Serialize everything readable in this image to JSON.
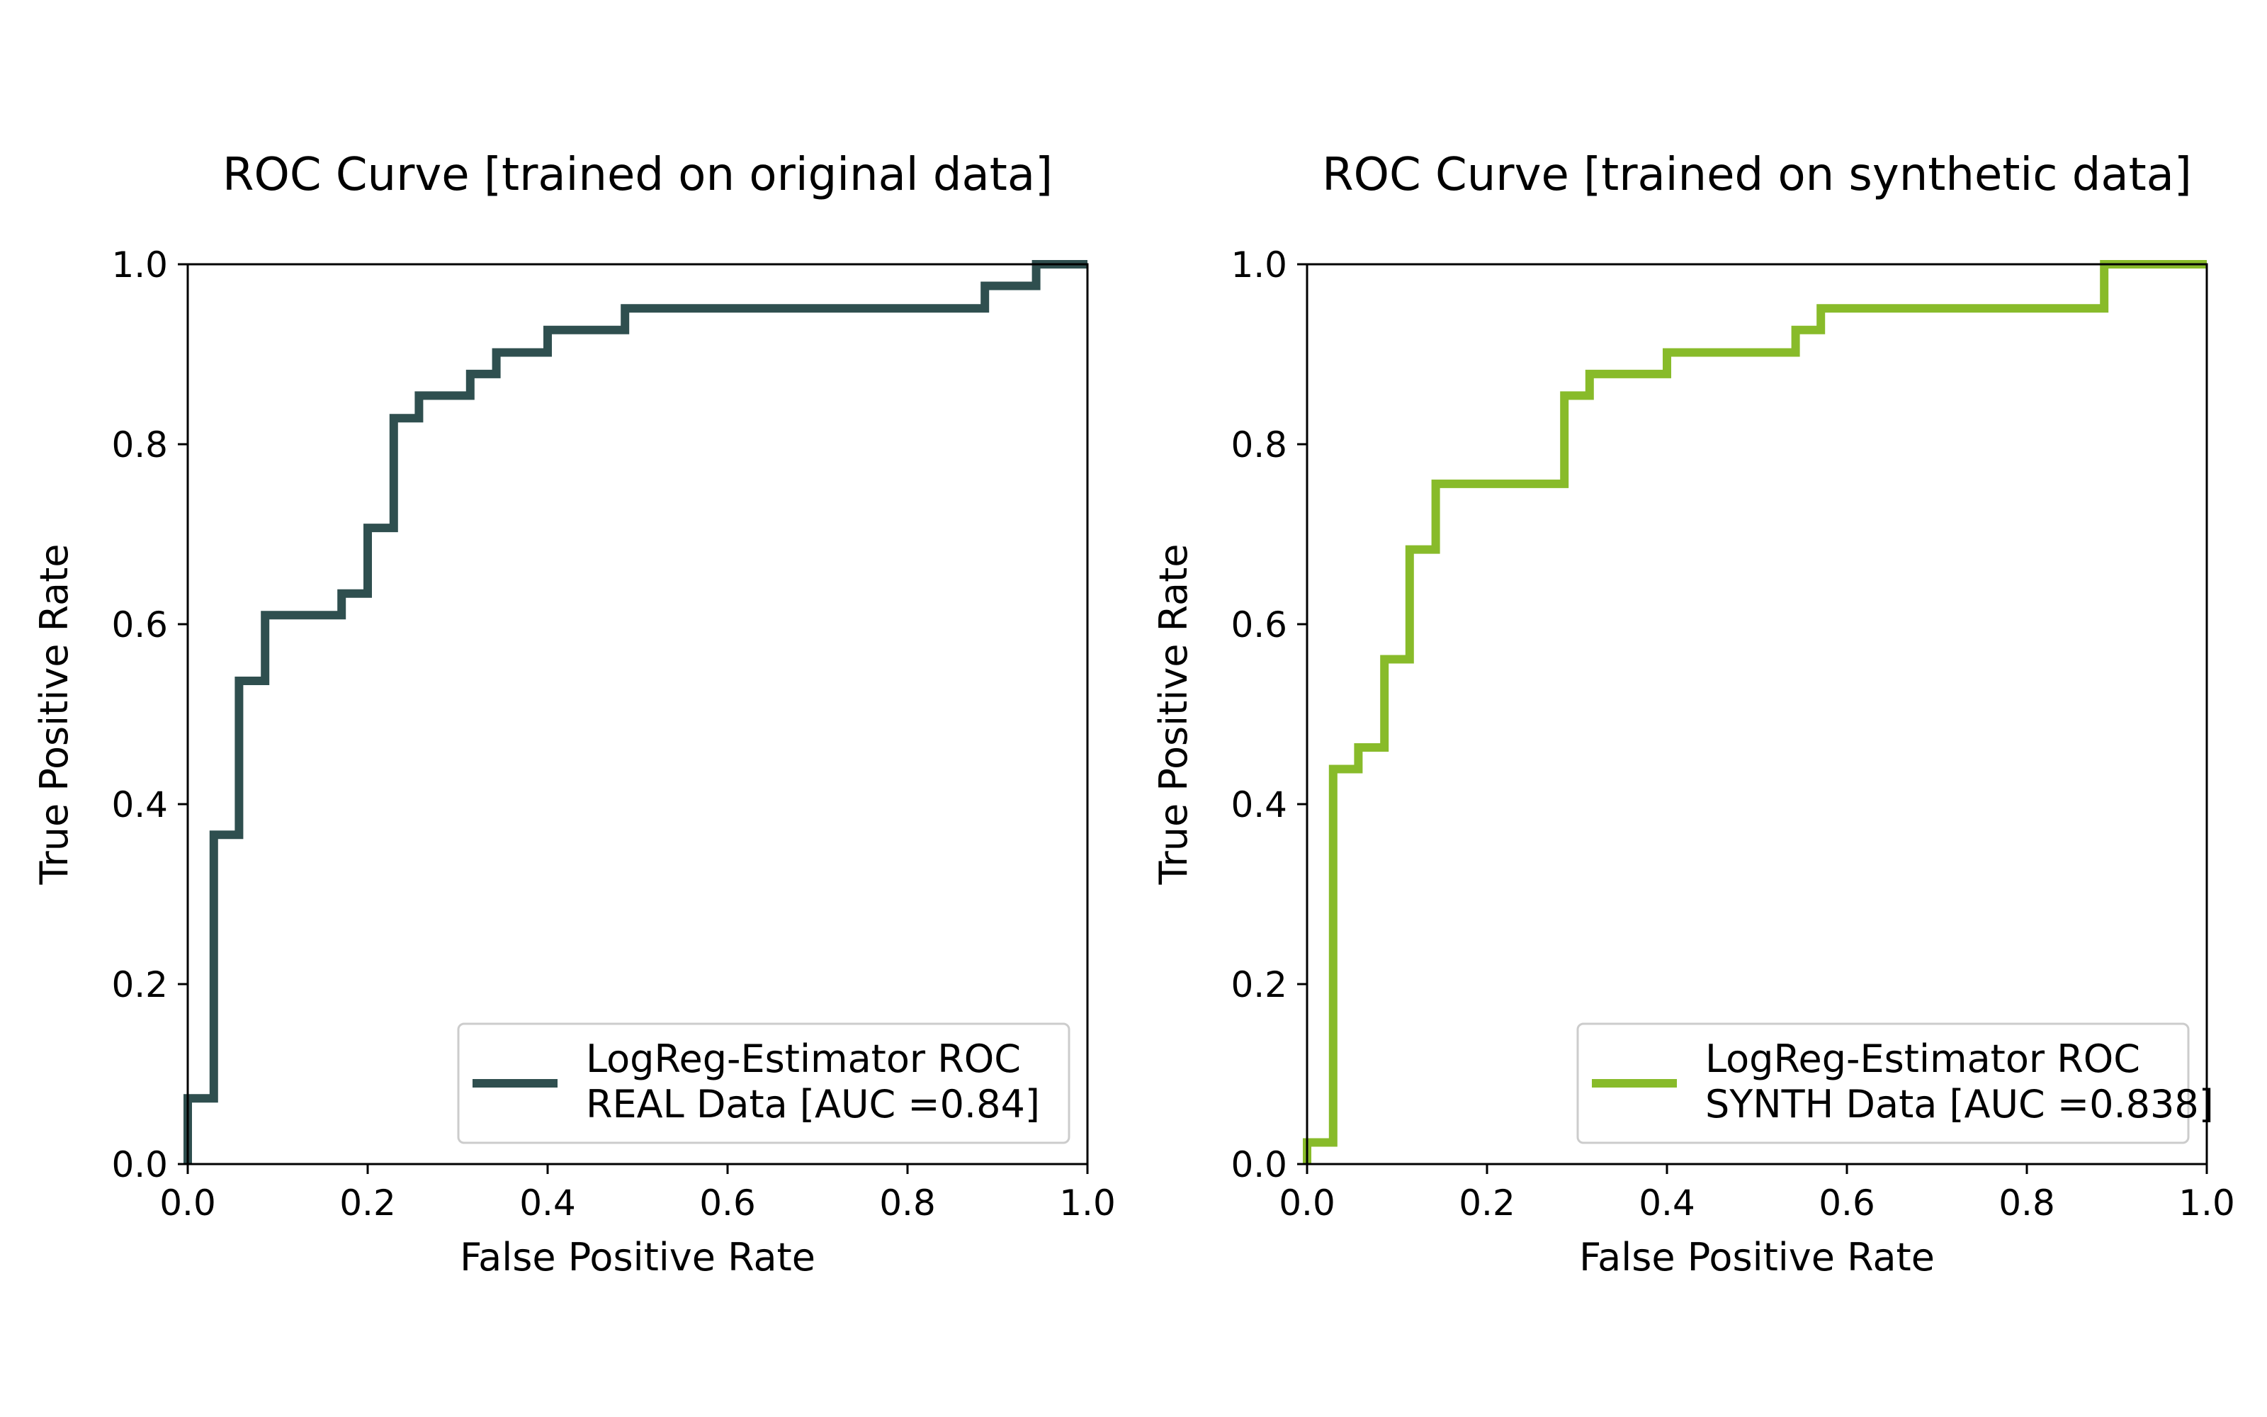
{
  "chart_data": [
    {
      "type": "line",
      "title": "ROC Curve [trained on original data]",
      "xlabel": "False Positive Rate",
      "ylabel": "True Positive Rate",
      "xlim": [
        0.0,
        1.0
      ],
      "ylim": [
        0.0,
        1.0
      ],
      "xticks": [
        "0.0",
        "0.2",
        "0.4",
        "0.6",
        "0.8",
        "1.0"
      ],
      "yticks": [
        "0.0",
        "0.2",
        "0.4",
        "0.6",
        "0.8",
        "1.0"
      ],
      "grid": false,
      "legend_position": "lower-right",
      "series": [
        {
          "name": "LogReg-Estimator ROC\nREAL Data [AUC =0.84]",
          "legend_line1": "LogReg-Estimator ROC",
          "legend_line2": "REAL Data [AUC =0.84]",
          "color": "#2f4f4f",
          "step": true,
          "x": [
            0.0,
            0.0,
            0.029,
            0.029,
            0.057,
            0.057,
            0.086,
            0.086,
            0.171,
            0.171,
            0.2,
            0.2,
            0.229,
            0.229,
            0.257,
            0.257,
            0.314,
            0.314,
            0.343,
            0.343,
            0.4,
            0.4,
            0.486,
            0.486,
            0.886,
            0.886,
            0.943,
            0.943,
            1.0
          ],
          "y": [
            0.0,
            0.073,
            0.073,
            0.366,
            0.366,
            0.537,
            0.537,
            0.61,
            0.61,
            0.634,
            0.634,
            0.707,
            0.707,
            0.829,
            0.829,
            0.854,
            0.854,
            0.878,
            0.878,
            0.902,
            0.902,
            0.927,
            0.927,
            0.951,
            0.951,
            0.976,
            0.976,
            1.0,
            1.0
          ]
        }
      ]
    },
    {
      "type": "line",
      "title": "ROC Curve [trained on synthetic data]",
      "xlabel": "False Positive Rate",
      "ylabel": "True Positive Rate",
      "xlim": [
        0.0,
        1.0
      ],
      "ylim": [
        0.0,
        1.0
      ],
      "xticks": [
        "0.0",
        "0.2",
        "0.4",
        "0.6",
        "0.8",
        "1.0"
      ],
      "yticks": [
        "0.0",
        "0.2",
        "0.4",
        "0.6",
        "0.8",
        "1.0"
      ],
      "grid": false,
      "legend_position": "lower-right",
      "series": [
        {
          "name": "LogReg-Estimator ROC\nSYNTH Data [AUC =0.838]",
          "legend_line1": "LogReg-Estimator ROC",
          "legend_line2": "SYNTH Data [AUC =0.838]",
          "color": "#88bb2a",
          "step": true,
          "x": [
            0.0,
            0.0,
            0.029,
            0.029,
            0.057,
            0.057,
            0.086,
            0.086,
            0.114,
            0.114,
            0.143,
            0.143,
            0.286,
            0.286,
            0.314,
            0.314,
            0.4,
            0.4,
            0.543,
            0.543,
            0.571,
            0.571,
            0.886,
            0.886,
            1.0
          ],
          "y": [
            0.0,
            0.024,
            0.024,
            0.439,
            0.439,
            0.463,
            0.463,
            0.561,
            0.561,
            0.683,
            0.683,
            0.756,
            0.756,
            0.854,
            0.854,
            0.878,
            0.878,
            0.902,
            0.902,
            0.927,
            0.927,
            0.951,
            0.951,
            1.0,
            1.0
          ]
        }
      ]
    }
  ]
}
